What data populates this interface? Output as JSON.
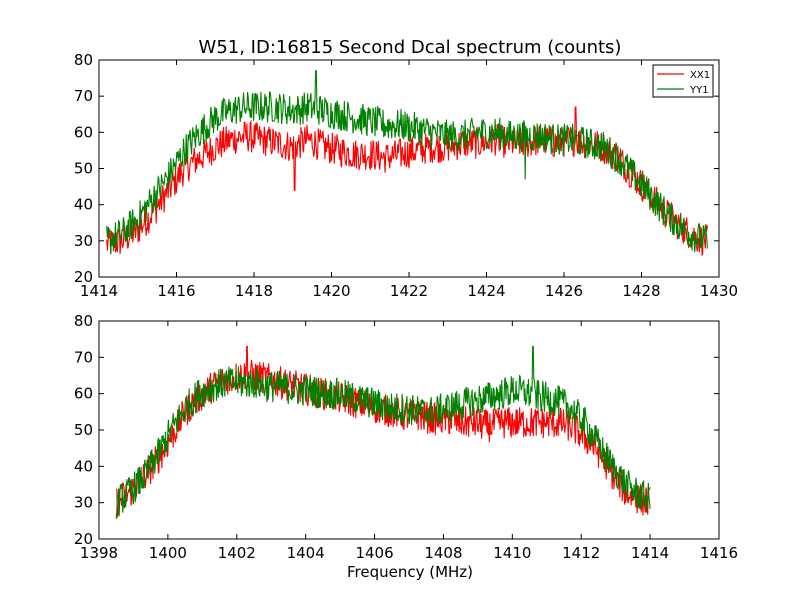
{
  "title": "W51, ID:16815 Second Dcal spectrum (counts)",
  "colors": {
    "xx1": "#ff0000",
    "yy1": "#008000",
    "frame": "#000000"
  },
  "chart_data": [
    {
      "type": "line",
      "title": "W51, ID:16815 Second Dcal spectrum (counts)",
      "xlabel": "",
      "ylabel": "",
      "xlim": [
        1414,
        1430
      ],
      "ylim": [
        20,
        80
      ],
      "xticks": [
        "1414",
        "1416",
        "1418",
        "1420",
        "1422",
        "1424",
        "1426",
        "1428",
        "1430"
      ],
      "yticks": [
        "20",
        "30",
        "40",
        "50",
        "60",
        "70",
        "80"
      ],
      "legend": {
        "placement": "top-right",
        "entries": [
          "XX1",
          "YY1"
        ]
      },
      "series": [
        {
          "name": "XX1",
          "color": "#ff0000",
          "x": [
            1414.2,
            1414.6,
            1415.0,
            1415.4,
            1415.8,
            1416.2,
            1416.6,
            1417.0,
            1417.4,
            1417.8,
            1418.2,
            1418.6,
            1419.0,
            1419.4,
            1419.8,
            1420.2,
            1420.6,
            1421.0,
            1421.4,
            1421.8,
            1422.2,
            1422.6,
            1423.0,
            1423.4,
            1423.8,
            1424.2,
            1424.6,
            1425.0,
            1425.4,
            1425.8,
            1426.2,
            1426.6,
            1427.0,
            1427.4,
            1427.8,
            1428.2,
            1428.6,
            1429.0,
            1429.4,
            1429.7
          ],
          "values": [
            29,
            30,
            33,
            38,
            44,
            50,
            53,
            56,
            58,
            59,
            58,
            57,
            56,
            58,
            56,
            55,
            54,
            54,
            53,
            54,
            55,
            56,
            56,
            57,
            57,
            58,
            57,
            57,
            58,
            57,
            58,
            57,
            56,
            53,
            48,
            43,
            38,
            34,
            31,
            30
          ]
        },
        {
          "name": "YY1",
          "color": "#008000",
          "x": [
            1414.2,
            1414.6,
            1415.0,
            1415.4,
            1415.8,
            1416.2,
            1416.6,
            1417.0,
            1417.4,
            1417.8,
            1418.2,
            1418.6,
            1419.0,
            1419.4,
            1419.8,
            1420.2,
            1420.6,
            1421.0,
            1421.4,
            1421.8,
            1422.2,
            1422.6,
            1423.0,
            1423.4,
            1423.8,
            1424.2,
            1424.6,
            1425.0,
            1425.4,
            1425.8,
            1426.2,
            1426.6,
            1427.0,
            1427.4,
            1427.8,
            1428.2,
            1428.6,
            1429.0,
            1429.4,
            1429.7
          ],
          "values": [
            30,
            32,
            36,
            42,
            48,
            55,
            60,
            64,
            66,
            67,
            67,
            67,
            66,
            67,
            66,
            65,
            64,
            63,
            62,
            62,
            61,
            60,
            59,
            59,
            60,
            60,
            59,
            59,
            59,
            58,
            58,
            57,
            56,
            53,
            48,
            43,
            38,
            34,
            31,
            30
          ]
        }
      ],
      "spikes": [
        {
          "series": "YY1",
          "x": 1419.6,
          "value": 77
        },
        {
          "series": "XX1",
          "x": 1419.05,
          "value": 44
        },
        {
          "series": "XX1",
          "x": 1426.3,
          "value": 67
        },
        {
          "series": "YY1",
          "x": 1425.0,
          "value": 47
        }
      ]
    },
    {
      "type": "line",
      "title": "",
      "xlabel": "Frequency (MHz)",
      "ylabel": "",
      "xlim": [
        1398,
        1416
      ],
      "ylim": [
        20,
        80
      ],
      "xticks": [
        "1398",
        "1400",
        "1402",
        "1404",
        "1406",
        "1408",
        "1410",
        "1412",
        "1414",
        "1416"
      ],
      "yticks": [
        "20",
        "30",
        "40",
        "50",
        "60",
        "70",
        "80"
      ],
      "series": [
        {
          "name": "XX1",
          "color": "#ff0000",
          "x": [
            1398.5,
            1398.9,
            1399.3,
            1399.7,
            1400.1,
            1400.5,
            1400.9,
            1401.3,
            1401.7,
            1402.1,
            1402.5,
            1402.9,
            1403.3,
            1403.7,
            1404.1,
            1404.5,
            1404.9,
            1405.3,
            1405.7,
            1406.1,
            1406.5,
            1406.9,
            1407.3,
            1407.7,
            1408.1,
            1408.5,
            1408.9,
            1409.3,
            1409.7,
            1410.1,
            1410.5,
            1410.9,
            1411.3,
            1411.7,
            1412.1,
            1412.5,
            1412.9,
            1413.3,
            1413.7,
            1414.0
          ],
          "values": [
            30,
            33,
            37,
            42,
            48,
            55,
            59,
            62,
            64,
            65,
            65,
            64,
            63,
            62,
            61,
            60,
            59,
            58,
            57,
            56,
            55,
            54,
            54,
            53,
            53,
            52,
            52,
            51,
            52,
            52,
            52,
            52,
            52,
            51,
            48,
            44,
            38,
            33,
            31,
            30
          ]
        },
        {
          "name": "YY1",
          "color": "#008000",
          "x": [
            1398.5,
            1398.9,
            1399.3,
            1399.7,
            1400.1,
            1400.5,
            1400.9,
            1401.3,
            1401.7,
            1402.1,
            1402.5,
            1402.9,
            1403.3,
            1403.7,
            1404.1,
            1404.5,
            1404.9,
            1405.3,
            1405.7,
            1406.1,
            1406.5,
            1406.9,
            1407.3,
            1407.7,
            1408.1,
            1408.5,
            1408.9,
            1409.3,
            1409.7,
            1410.1,
            1410.5,
            1410.9,
            1411.3,
            1411.7,
            1412.1,
            1412.5,
            1412.9,
            1413.3,
            1413.7,
            1414.0
          ],
          "values": [
            30,
            33,
            37,
            43,
            50,
            56,
            60,
            62,
            63,
            63,
            63,
            62,
            62,
            61,
            61,
            60,
            60,
            59,
            58,
            57,
            56,
            56,
            55,
            55,
            56,
            57,
            58,
            59,
            60,
            61,
            60,
            59,
            58,
            56,
            52,
            46,
            40,
            35,
            32,
            31
          ]
        }
      ],
      "spikes": [
        {
          "series": "YY1",
          "x": 1410.6,
          "value": 73
        },
        {
          "series": "XX1",
          "x": 1402.3,
          "value": 73
        }
      ]
    }
  ]
}
